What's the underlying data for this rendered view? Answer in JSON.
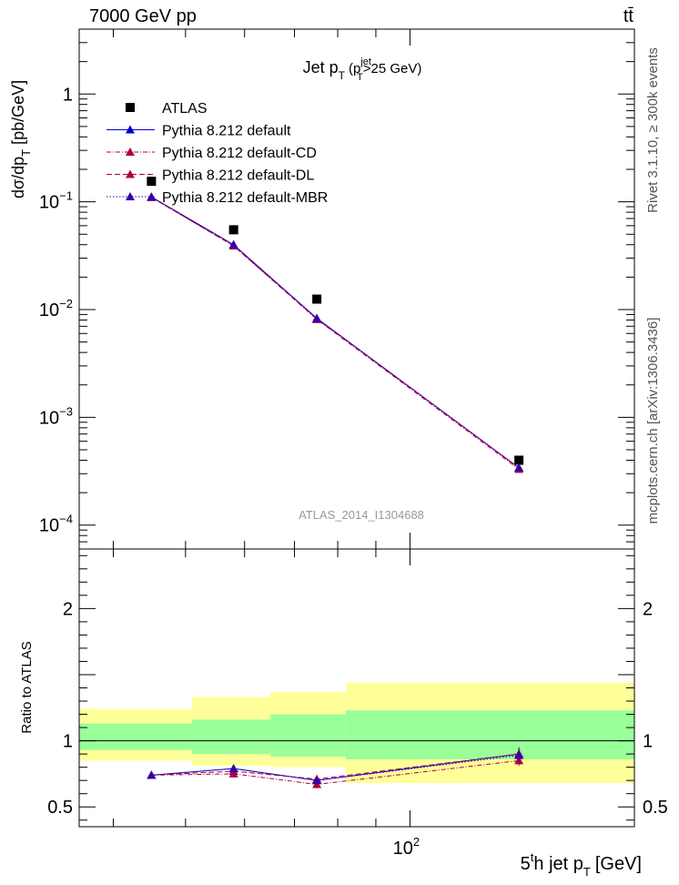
{
  "header": {
    "left": "7000 GeV pp",
    "right": "tt̄"
  },
  "side_labels": {
    "rivet": "Rivet 3.1.10, ≥ 300k events",
    "mcplots": "mcplots.cern.ch [arXiv:1306.3436]"
  },
  "chart_data": [
    {
      "type": "scatter",
      "title_parts": {
        "main": "Jet p",
        "sub": "T",
        "paren_open": "(p",
        "sup": "jet",
        "sub2": "T",
        "cut": ">25 GeV)"
      },
      "reference_label": "ATLAS_2014_I1304688",
      "ylabel_parts": {
        "main": "dσ/dp",
        "sub": "T",
        "unit": "[pb/GeV]"
      },
      "xscale": "log",
      "yscale": "log",
      "xlim": [
        36,
        200
      ],
      "ylim": [
        6e-05,
        4
      ],
      "yticks": [
        {
          "value": 1,
          "label": "1"
        },
        {
          "value": 0.1,
          "label": "10",
          "exp": "−1"
        },
        {
          "value": 0.01,
          "label": "10",
          "exp": "−2"
        },
        {
          "value": 0.001,
          "label": "10",
          "exp": "−3"
        },
        {
          "value": 0.0001,
          "label": "10",
          "exp": "−4"
        }
      ],
      "legend_position": "top-left",
      "series": [
        {
          "name": "ATLAS",
          "marker": "square",
          "color": "#000000",
          "line": "none",
          "x": [
            45,
            58,
            75,
            140
          ],
          "y": [
            0.155,
            0.055,
            0.0125,
            0.0004
          ]
        },
        {
          "name": "Pythia 8.212 default",
          "marker": "triangle",
          "color": "#0000cc",
          "line": "solid",
          "x": [
            45,
            58,
            75,
            140
          ],
          "y": [
            0.111,
            0.04,
            0.0083,
            0.00034
          ]
        },
        {
          "name": "Pythia 8.212 default-CD",
          "marker": "triangle",
          "color": "#aa0044",
          "line": "dashdot",
          "x": [
            45,
            58,
            75,
            140
          ],
          "y": [
            0.11,
            0.039,
            0.0081,
            0.00033
          ]
        },
        {
          "name": "Pythia 8.212 default-DL",
          "marker": "triangle",
          "color": "#aa0044",
          "line": "dashed",
          "x": [
            45,
            58,
            75,
            140
          ],
          "y": [
            0.11,
            0.039,
            0.0082,
            0.00034
          ]
        },
        {
          "name": "Pythia 8.212 default-MBR",
          "marker": "triangle",
          "color": "#3300aa",
          "line": "dotted",
          "x": [
            45,
            58,
            75,
            140
          ],
          "y": [
            0.111,
            0.04,
            0.0083,
            0.00034
          ]
        }
      ]
    },
    {
      "type": "line",
      "ylabel": "Ratio to ATLAS",
      "xlabel_parts": {
        "pre": "5",
        "sup": "t",
        "mid": "h jet p",
        "sub": "T",
        "unit": "[GeV]"
      },
      "xscale": "log",
      "xlim": [
        36,
        200
      ],
      "ylim": [
        0.35,
        2.45
      ],
      "yticks": [
        {
          "value": 2,
          "label": "2"
        },
        {
          "value": 1,
          "label": "1"
        },
        {
          "value": 0.5,
          "label": "0.5"
        }
      ],
      "xticks": [
        {
          "value": 100,
          "label": "10",
          "exp": "2"
        }
      ],
      "bands": [
        {
          "x": [
            36,
            51
          ],
          "outer": [
            0.85,
            1.24
          ],
          "inner": [
            0.93,
            1.13
          ]
        },
        {
          "x": [
            51,
            65
          ],
          "outer": [
            0.81,
            1.33
          ],
          "inner": [
            0.9,
            1.16
          ]
        },
        {
          "x": [
            65,
            82
          ],
          "outer": [
            0.8,
            1.37
          ],
          "inner": [
            0.88,
            1.2
          ]
        },
        {
          "x": [
            82,
            200
          ],
          "outer": [
            0.68,
            1.44
          ],
          "inner": [
            0.86,
            1.23
          ]
        }
      ],
      "series": [
        {
          "name": "Pythia 8.212 default",
          "color": "#0000cc",
          "line": "solid",
          "x": [
            45,
            58,
            75,
            140
          ],
          "y": [
            0.74,
            0.79,
            0.7,
            0.9
          ],
          "err": [
            0.02,
            0.02,
            0.03,
            0.05
          ]
        },
        {
          "name": "Pythia 8.212 default-CD",
          "color": "#aa0044",
          "line": "dashdot",
          "x": [
            45,
            58,
            75,
            140
          ],
          "y": [
            0.74,
            0.75,
            0.67,
            0.85
          ],
          "err": [
            0.02,
            0.02,
            0.03,
            0.04
          ]
        },
        {
          "name": "Pythia 8.212 default-DL",
          "color": "#aa0044",
          "line": "dashed",
          "x": [
            45,
            58,
            75,
            140
          ],
          "y": [
            0.74,
            0.77,
            0.71,
            0.9
          ],
          "err": [
            0.02,
            0.02,
            0.03,
            0.04
          ]
        },
        {
          "name": "Pythia 8.212 default-MBR",
          "color": "#3300aa",
          "line": "dotted",
          "x": [
            45,
            58,
            75,
            140
          ],
          "y": [
            0.74,
            0.79,
            0.7,
            0.89
          ],
          "err": [
            0.02,
            0.02,
            0.03,
            0.05
          ]
        }
      ]
    }
  ]
}
